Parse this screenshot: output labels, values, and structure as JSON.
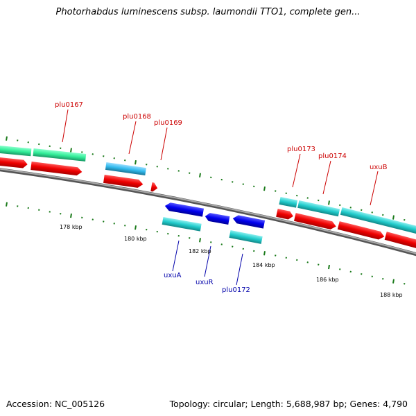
{
  "title": "Photorhabdus luminescens subsp. laumondii TTO1, complete gen...",
  "footer": {
    "accession": "Accession: NC_005126",
    "summary": "Topology: circular; Length: 5,688,987 bp; Genes: 4,790"
  },
  "colors": {
    "backbone": "#808080",
    "tick": "#1a7a1a",
    "gene_red": "#ee0000",
    "gene_mint": "#33ee99",
    "gene_sky": "#33bbee",
    "gene_teal": "#22cccc",
    "gene_blue": "#0000ee",
    "label_top": "#cc0000",
    "label_bottom": "#0000aa"
  },
  "ticks": [
    "178 kbp",
    "180 kbp",
    "182 kbp",
    "184 kbp",
    "186 kbp",
    "188 kbp"
  ],
  "labels_top": [
    "plu0167",
    "plu0168",
    "plu0169",
    "plu0173",
    "plu0174",
    "uxuB"
  ],
  "labels_bottom": [
    "uxuA",
    "uxuR",
    "plu0172"
  ]
}
